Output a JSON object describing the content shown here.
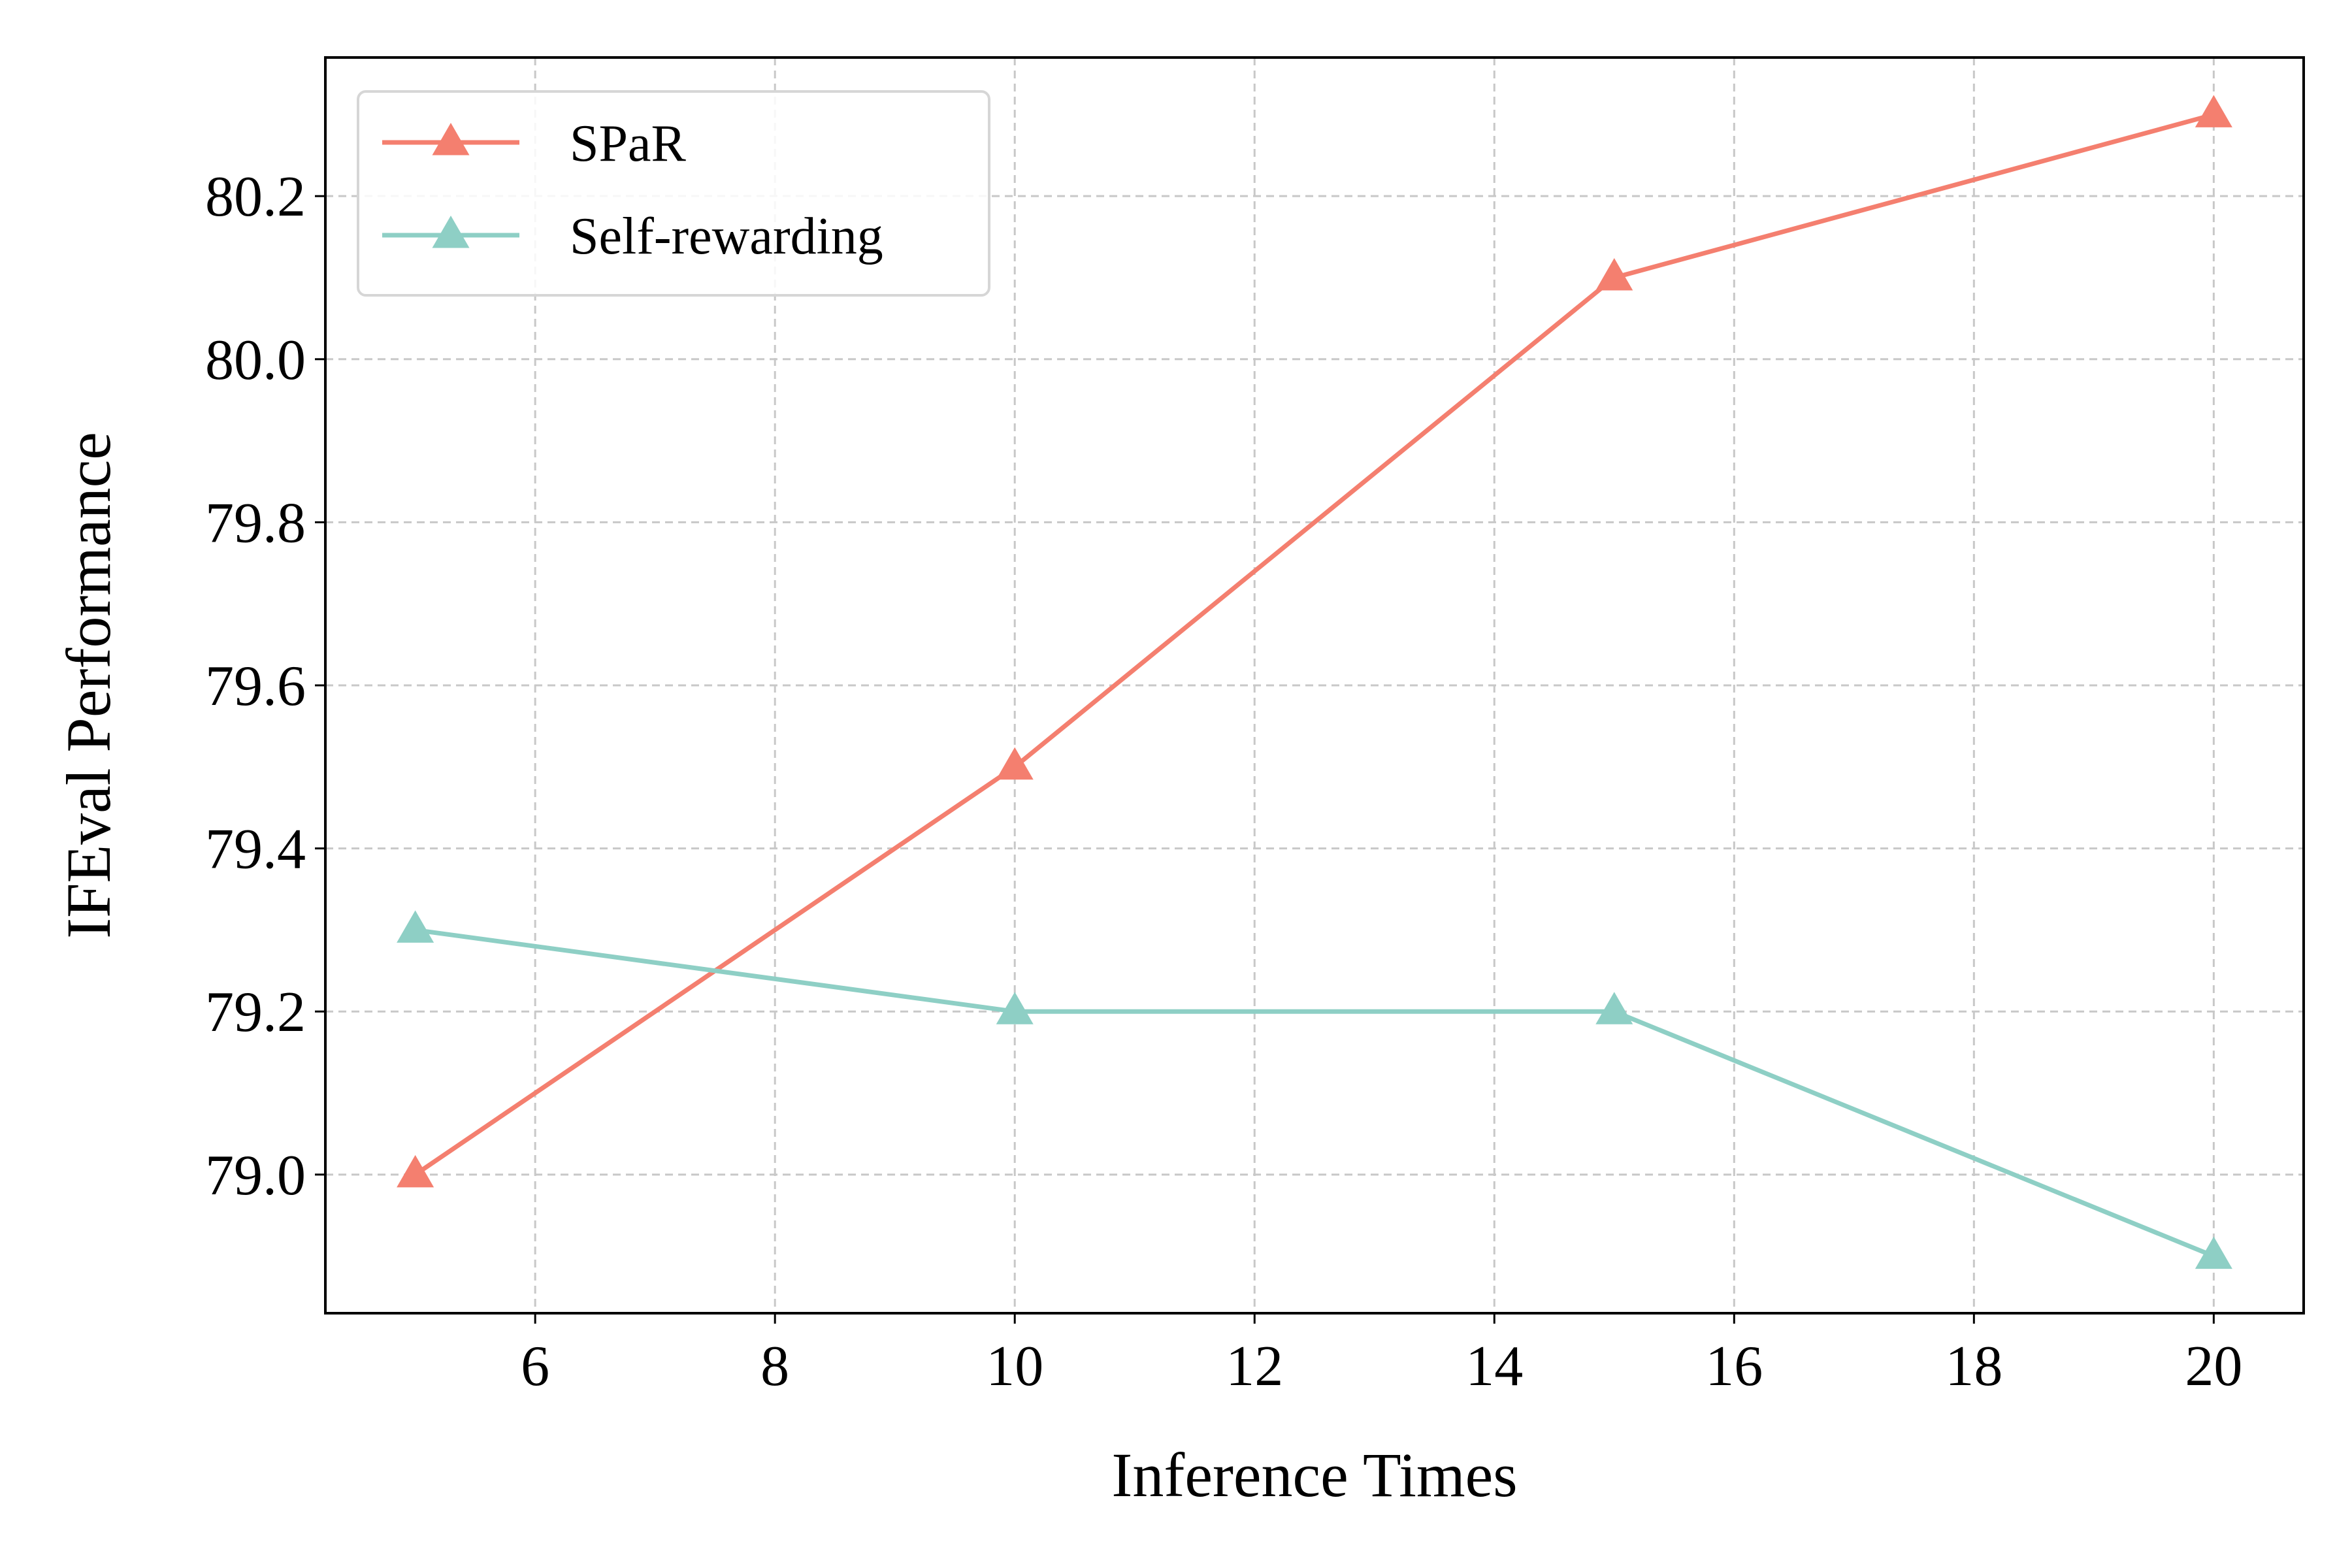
{
  "chart_data": {
    "type": "line",
    "title": "",
    "xlabel": "Inference Times",
    "ylabel": "IFEval Performance",
    "x": [
      5,
      10,
      15,
      20
    ],
    "series": [
      {
        "name": "SPaR",
        "values": [
          79.0,
          79.5,
          80.1,
          80.3
        ],
        "color": "#f47f6f",
        "marker": "triangle"
      },
      {
        "name": "Self-rewarding",
        "values": [
          79.3,
          79.2,
          79.2,
          78.9
        ],
        "color": "#8ecfc5",
        "marker": "triangle"
      }
    ],
    "xlim": [
      4.25,
      20.75
    ],
    "ylim": [
      78.83,
      80.37
    ],
    "xticks": [
      6,
      8,
      10,
      12,
      14,
      16,
      18,
      20
    ],
    "yticks": [
      79.0,
      79.2,
      79.4,
      79.6,
      79.8,
      80.0,
      80.2
    ],
    "ytick_labels": [
      "79.0",
      "79.2",
      "79.4",
      "79.6",
      "79.8",
      "80.0",
      "80.2"
    ],
    "grid": true,
    "legend_position": "top-left"
  }
}
